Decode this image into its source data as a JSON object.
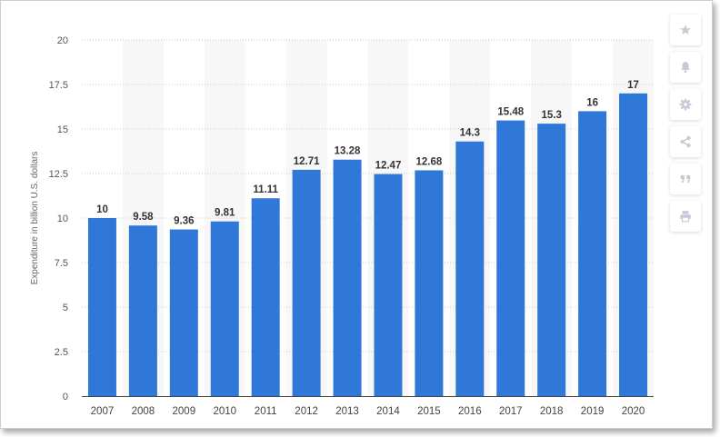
{
  "chart_data": {
    "type": "bar",
    "categories": [
      "2007",
      "2008",
      "2009",
      "2010",
      "2011",
      "2012",
      "2013",
      "2014",
      "2015",
      "2016",
      "2017",
      "2018",
      "2019",
      "2020"
    ],
    "values": [
      10,
      9.58,
      9.36,
      9.81,
      11.11,
      12.71,
      13.28,
      12.47,
      12.68,
      14.3,
      15.48,
      15.3,
      16,
      17
    ],
    "data_labels": [
      "10",
      "9.58",
      "9.36",
      "9.81",
      "11.11",
      "12.71",
      "13.28",
      "12.47",
      "12.68",
      "14.3",
      "15.48",
      "15.3",
      "16",
      "17"
    ],
    "y_ticks": [
      0,
      2.5,
      5,
      7.5,
      10,
      12.5,
      15,
      17.5,
      20
    ],
    "y_tick_labels": [
      "0",
      "2.5",
      "5",
      "7.5",
      "10",
      "12.5",
      "15",
      "17.5",
      "20"
    ],
    "ylim": [
      0,
      20
    ],
    "ylabel": "Expenditure in billion U.S. dollars",
    "xlabel": "",
    "title": "",
    "grid": "horizontal dotted",
    "legend": "none",
    "colors": {
      "bar": "#2f78d8",
      "alt_band": "#f7f7f7",
      "grid": "#cccccc",
      "axis": "#444444"
    }
  },
  "toolbar": {
    "buttons": [
      {
        "icon": "star-icon",
        "name": "favorite-button"
      },
      {
        "icon": "bell-icon",
        "name": "notification-button"
      },
      {
        "icon": "gear-icon",
        "name": "settings-button"
      },
      {
        "icon": "share-icon",
        "name": "share-button"
      },
      {
        "icon": "quote-icon",
        "name": "cite-button"
      },
      {
        "icon": "print-icon",
        "name": "print-button"
      }
    ]
  }
}
